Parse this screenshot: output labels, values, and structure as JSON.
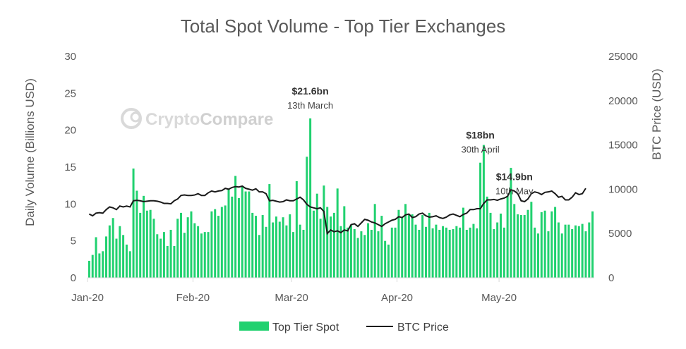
{
  "watermark": {
    "text_a": "Crypto",
    "text_b": "Compare"
  },
  "chart_data": {
    "type": "bar",
    "title": "Total Spot Volume - Top Tier Exchanges",
    "ylabel": "Daily Volume (Billions USD)",
    "y2label": "BTC Price (USD)",
    "ylim": [
      0,
      30
    ],
    "y2lim": [
      0,
      25000
    ],
    "yticks": [
      "0",
      "5",
      "10",
      "15",
      "20",
      "25",
      "30"
    ],
    "y2ticks": [
      "0",
      "5000",
      "10000",
      "15000",
      "20000",
      "25000"
    ],
    "x_ticks": [
      {
        "label": "Jan-20",
        "day": 0
      },
      {
        "label": "Feb-20",
        "day": 31
      },
      {
        "label": "Mar-20",
        "day": 60
      },
      {
        "label": "Apr-20",
        "day": 91
      },
      {
        "label": "May-20",
        "day": 121
      }
    ],
    "legend": {
      "placement": "bottom"
    },
    "colors": {
      "bars": "#20d16f",
      "line": "#1a1a1a"
    },
    "series": [
      {
        "name": "Top Tier Spot",
        "type": "bar",
        "values": [
          2.3,
          3.1,
          5.5,
          3.3,
          3.6,
          5.6,
          7.1,
          8.1,
          5.3,
          7.0,
          5.8,
          4.5,
          3.6,
          14.8,
          11.8,
          8.8,
          11.1,
          9.1,
          9.2,
          8.0,
          5.9,
          5.3,
          6.2,
          4.3,
          6.5,
          4.3,
          8.0,
          8.8,
          6.1,
          8.2,
          9.0,
          7.4,
          7.0,
          6.0,
          6.2,
          6.2,
          9.0,
          9.3,
          8.4,
          9.6,
          9.8,
          12.0,
          11.0,
          13.8,
          10.8,
          12.4,
          11.7,
          11.7,
          8.8,
          8.4,
          5.8,
          8.5,
          6.9,
          12.7,
          7.5,
          8.3,
          7.6,
          8.2,
          7.1,
          8.6,
          6.2,
          13.1,
          7.2,
          6.5,
          16.4,
          21.6,
          9.1,
          11.4,
          8.0,
          12.5,
          9.6,
          8.3,
          8.8,
          12.1,
          7.0,
          9.7,
          6.8,
          7.1,
          6.6,
          5.4,
          6.3,
          5.8,
          7.4,
          6.5,
          10.0,
          6.3,
          8.4,
          5.0,
          4.5,
          6.8,
          6.8,
          9.2,
          8.2,
          10.0,
          8.6,
          8.6,
          7.2,
          6.5,
          8.5,
          6.9,
          8.8,
          6.7,
          7.2,
          6.5,
          7.0,
          6.8,
          6.5,
          6.6,
          7.0,
          6.8,
          9.5,
          6.5,
          6.8,
          7.3,
          6.7,
          15.6,
          18.0,
          11.0,
          8.8,
          6.6,
          7.5,
          8.7,
          6.8,
          11.1,
          14.9,
          10.0,
          8.6,
          8.5,
          8.5,
          9.2,
          10.3,
          6.8,
          6.0,
          8.9,
          9.1,
          6.3,
          9.0,
          9.6,
          7.5,
          6.0,
          7.2,
          7.2,
          6.6,
          7.1,
          7.0,
          7.3,
          6.3,
          7.5,
          9.0
        ]
      },
      {
        "name": "BTC Price",
        "type": "line",
        "axis": "right",
        "values": [
          7200,
          7000,
          7300,
          7350,
          7300,
          7700,
          8000,
          7900,
          7700,
          8100,
          8000,
          8100,
          8000,
          8700,
          8750,
          8700,
          8600,
          8650,
          8700,
          8700,
          8650,
          8550,
          8400,
          8400,
          8350,
          8700,
          8900,
          9300,
          9350,
          9300,
          9300,
          9350,
          9500,
          9300,
          9300,
          9600,
          9800,
          9700,
          9800,
          9850,
          10100,
          10000,
          10200,
          10300,
          10250,
          10350,
          10100,
          10000,
          9900,
          10050,
          9700,
          9700,
          9500,
          8700,
          8750,
          8650,
          8550,
          8600,
          8800,
          8700,
          8700,
          8900,
          9100,
          8800,
          8300,
          8000,
          7900,
          7800,
          7900,
          7500,
          5000,
          5400,
          5200,
          5300,
          5100,
          5400,
          5300,
          6000,
          6100,
          5800,
          6200,
          6600,
          6500,
          6300,
          6200,
          6000,
          5800,
          6100,
          6300,
          6500,
          6600,
          6900,
          6800,
          7100,
          7200,
          6800,
          6900,
          7200,
          7300,
          7000,
          6850,
          6900,
          7000,
          6800,
          6700,
          6850,
          7100,
          7200,
          7050,
          6900,
          7150,
          7300,
          7700,
          7700,
          7800,
          7800,
          8400,
          8800,
          8800,
          8850,
          8750,
          8900,
          9000,
          9200,
          9950,
          9800,
          9500,
          8700,
          8600,
          8900,
          9500,
          9700,
          9600,
          9400,
          9650,
          9700,
          9800,
          9500,
          9100,
          9200,
          8800,
          8800,
          9100,
          9600,
          9400,
          9500,
          10100
        ]
      }
    ],
    "annotations": [
      {
        "day": 65,
        "value_text": "$21.6bn",
        "date_text": "13th March"
      },
      {
        "day": 115,
        "value_text": "$18bn",
        "date_text": "30th April"
      },
      {
        "day": 125,
        "value_text": "$14.9bn",
        "date_text": "10th May"
      }
    ]
  }
}
